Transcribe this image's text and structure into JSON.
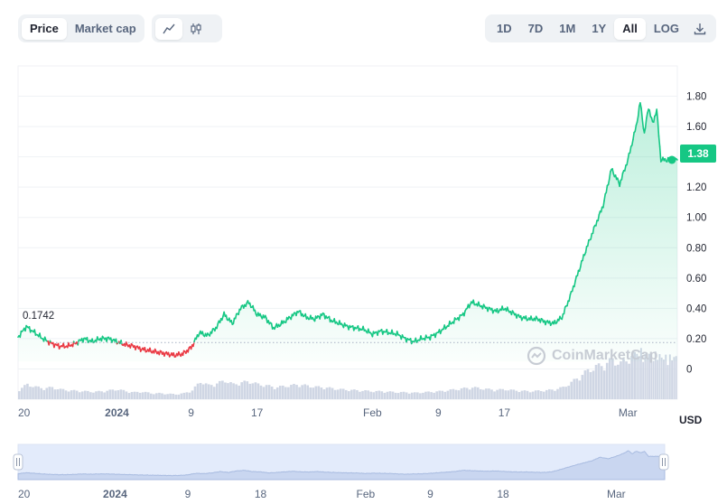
{
  "toolbar": {
    "view_tabs": [
      {
        "label": "Price",
        "active": true
      },
      {
        "label": "Market cap",
        "active": false
      }
    ],
    "chart_type_icons": [
      "line-chart-icon",
      "candlestick-icon"
    ],
    "range_tabs": [
      {
        "label": "1D",
        "active": false
      },
      {
        "label": "7D",
        "active": false
      },
      {
        "label": "1M",
        "active": false
      },
      {
        "label": "1Y",
        "active": false
      },
      {
        "label": "All",
        "active": true
      },
      {
        "label": "LOG",
        "active": false
      }
    ],
    "download_icon": "download-icon"
  },
  "watermark": "CoinMarketCap",
  "price_tag": "1.38",
  "reference_label": "0.1742",
  "currency": "USD",
  "colors": {
    "up": "#16c784",
    "down": "#ea3943",
    "volume": "#cfd6e4",
    "navigator": "#e3ebfb"
  },
  "chart_data": {
    "type": "line",
    "ylim": [
      -0.2,
      2.0
    ],
    "yticks": [
      "0",
      "0.20",
      "0.40",
      "0.60",
      "0.80",
      "1.00",
      "1.20",
      "1.40",
      "1.60",
      "1.80"
    ],
    "ytick_values": [
      0,
      0.2,
      0.4,
      0.6,
      0.8,
      1.0,
      1.2,
      1.4,
      1.6,
      1.8
    ],
    "xticks": [
      "20",
      "2024",
      "9",
      "17",
      "Feb",
      "9",
      "17",
      "Mar"
    ],
    "xtick_days": [
      0,
      12,
      21,
      29,
      43,
      51,
      59,
      74
    ],
    "navigator_xticks": [
      "20",
      "2024",
      "9",
      "18",
      "Feb",
      "9",
      "18",
      "Mar"
    ],
    "navigator_xtick_days": [
      0,
      12,
      21,
      30,
      43,
      51,
      60,
      74
    ],
    "x_range_days": [
      0,
      80
    ],
    "reference_value": 0.1742,
    "last_value": 1.38,
    "series": [
      {
        "x": [
          0,
          1,
          2,
          3,
          4,
          5,
          6,
          7,
          8,
          9,
          10,
          11,
          12,
          13,
          14,
          15,
          16,
          17,
          18,
          19,
          20,
          21,
          22,
          23,
          24,
          25,
          26,
          27,
          28,
          29,
          30,
          31,
          32,
          33,
          34,
          35,
          36,
          37,
          38,
          39,
          40,
          41,
          42,
          43,
          44,
          45,
          46,
          47,
          48,
          49,
          50,
          51,
          52,
          53,
          54,
          55,
          56,
          57,
          58,
          59,
          60,
          61,
          62,
          63,
          64,
          65,
          66,
          67,
          68,
          69,
          70,
          71,
          72,
          73,
          74,
          75,
          75.5,
          76,
          76.5,
          77,
          77.5,
          78,
          78.5,
          79,
          79.5,
          80
        ],
        "y": [
          0.21,
          0.28,
          0.24,
          0.2,
          0.17,
          0.15,
          0.15,
          0.17,
          0.2,
          0.18,
          0.2,
          0.2,
          0.18,
          0.16,
          0.15,
          0.13,
          0.12,
          0.11,
          0.1,
          0.09,
          0.1,
          0.14,
          0.24,
          0.22,
          0.27,
          0.36,
          0.3,
          0.4,
          0.44,
          0.36,
          0.34,
          0.27,
          0.3,
          0.34,
          0.38,
          0.34,
          0.33,
          0.36,
          0.32,
          0.3,
          0.28,
          0.27,
          0.26,
          0.23,
          0.25,
          0.24,
          0.23,
          0.2,
          0.18,
          0.2,
          0.21,
          0.24,
          0.28,
          0.32,
          0.36,
          0.44,
          0.42,
          0.4,
          0.38,
          0.4,
          0.37,
          0.34,
          0.33,
          0.33,
          0.31,
          0.3,
          0.34,
          0.48,
          0.64,
          0.8,
          0.94,
          1.08,
          1.32,
          1.22,
          1.38,
          1.6,
          1.76,
          1.55,
          1.73,
          1.62,
          1.71,
          1.38,
          1.38,
          1.38,
          1.38,
          1.38
        ],
        "volume": [
          0.2,
          0.3,
          0.25,
          0.22,
          0.24,
          0.2,
          0.18,
          0.17,
          0.16,
          0.15,
          0.16,
          0.18,
          0.2,
          0.16,
          0.14,
          0.15,
          0.12,
          0.12,
          0.11,
          0.1,
          0.12,
          0.18,
          0.36,
          0.28,
          0.32,
          0.38,
          0.3,
          0.34,
          0.36,
          0.3,
          0.28,
          0.24,
          0.26,
          0.28,
          0.3,
          0.27,
          0.25,
          0.24,
          0.22,
          0.2,
          0.19,
          0.18,
          0.17,
          0.16,
          0.16,
          0.15,
          0.14,
          0.14,
          0.13,
          0.14,
          0.15,
          0.16,
          0.18,
          0.2,
          0.22,
          0.24,
          0.22,
          0.2,
          0.19,
          0.2,
          0.18,
          0.17,
          0.16,
          0.17,
          0.18,
          0.2,
          0.24,
          0.34,
          0.46,
          0.58,
          0.66,
          0.7,
          0.8,
          0.72,
          0.84,
          0.9,
          0.96,
          0.86,
          0.92,
          0.88,
          0.9,
          0.84,
          0.84,
          0.84,
          0.84,
          0.84
        ]
      }
    ]
  }
}
